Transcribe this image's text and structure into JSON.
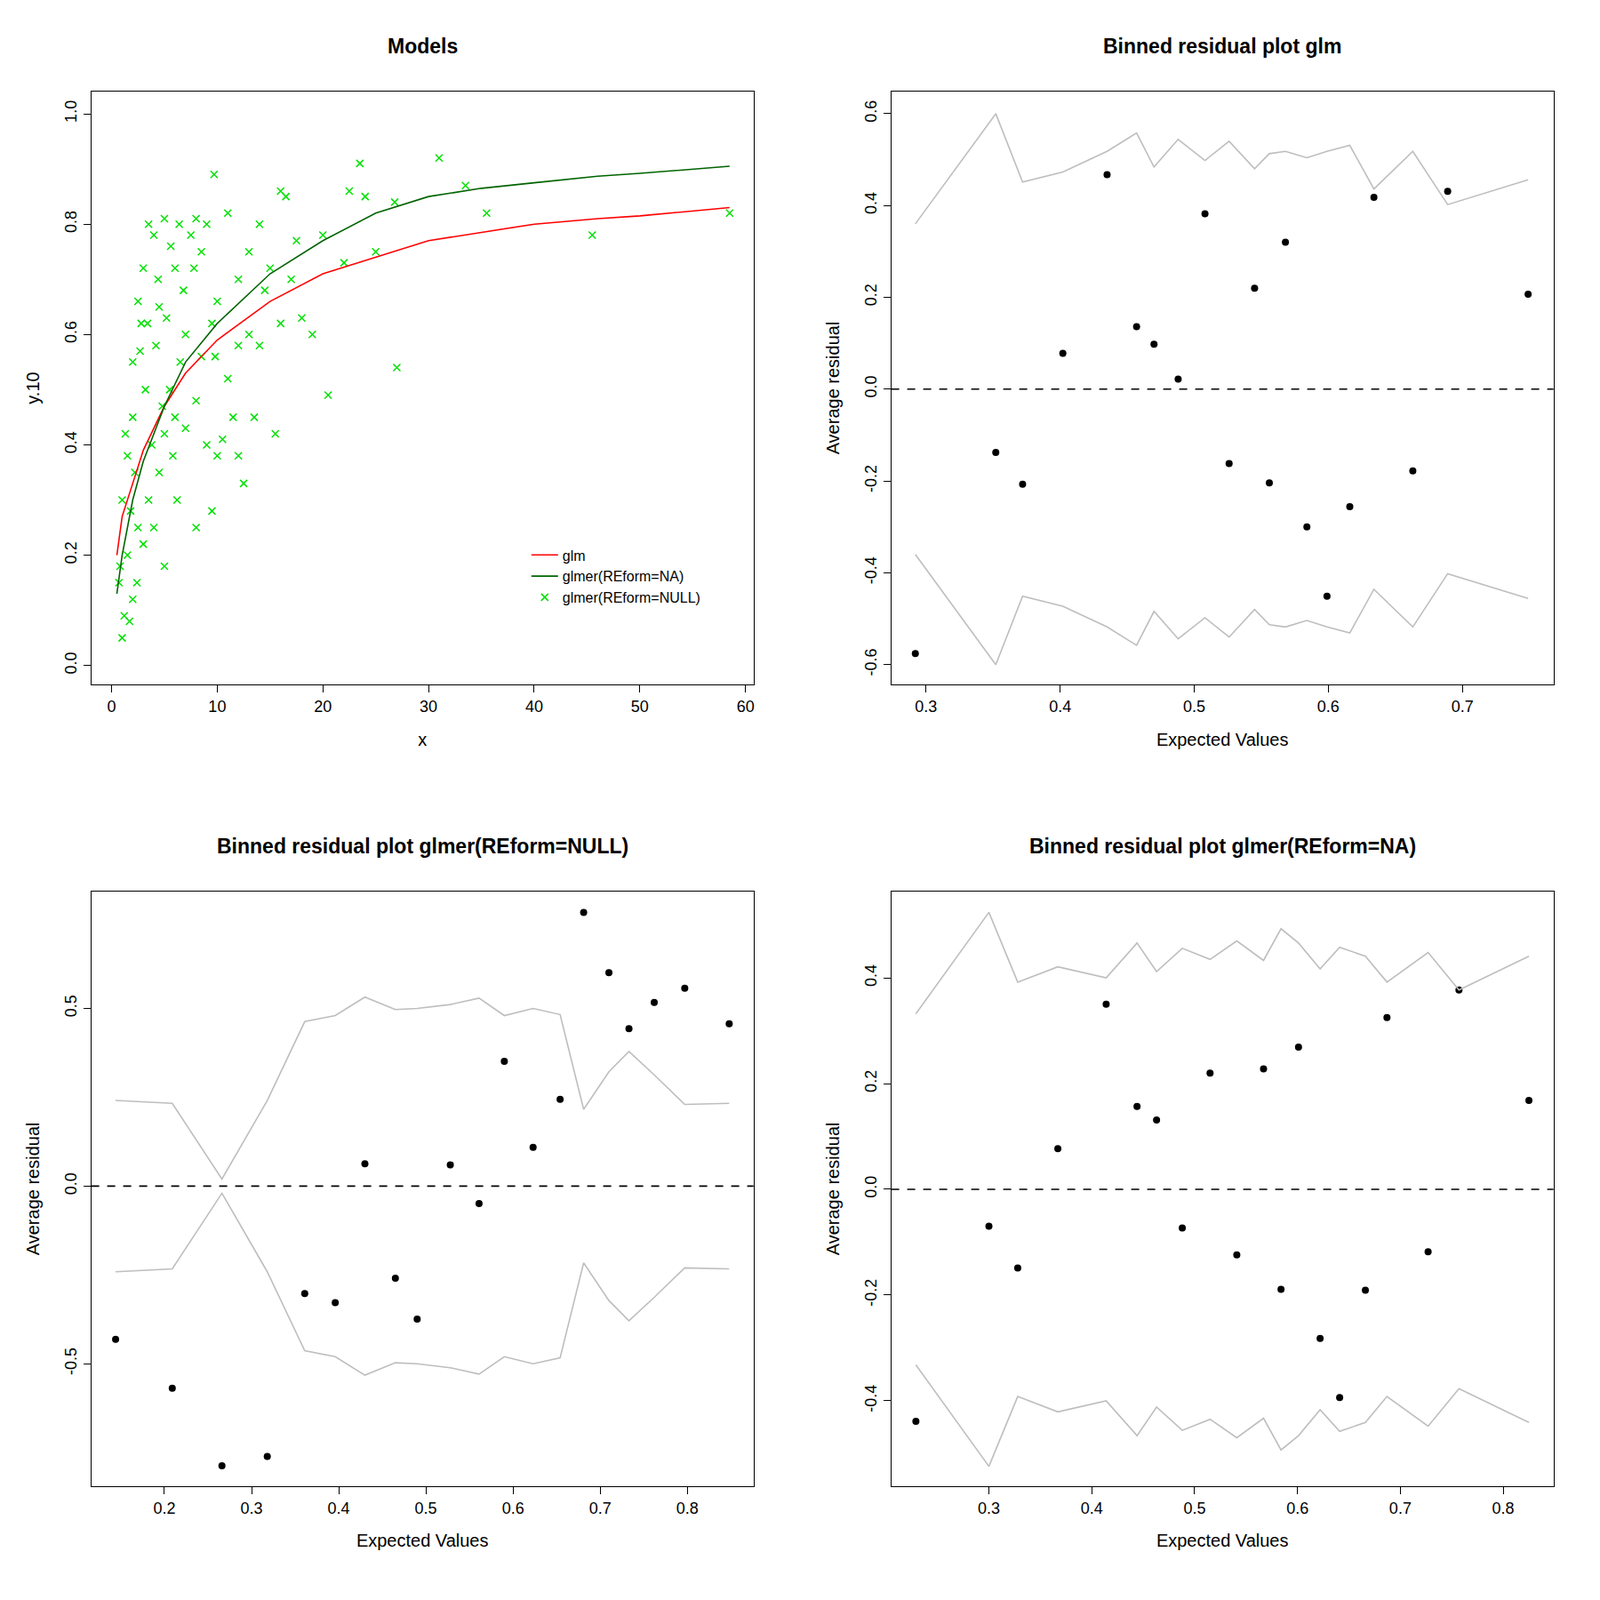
{
  "chart_data": [
    {
      "type": "scatter",
      "title": "Models",
      "x_label": "x",
      "y_label": "y.10",
      "xlim": [
        -1.93,
        60.77
      ],
      "ylim": [
        -0.035,
        1.041
      ],
      "xticks": [
        0,
        10,
        20,
        30,
        40,
        50,
        60
      ],
      "yticks": [
        {
          "value": 0,
          "label": "0.0"
        },
        0.2,
        0.4,
        0.6,
        0.8,
        {
          "value": 1,
          "label": "1.0"
        }
      ],
      "grid": false,
      "legend": "lower right",
      "series": [
        {
          "name": "glm",
          "type": "line",
          "color": "#ff0000",
          "x": [
            0.5,
            1,
            2,
            3,
            5,
            7,
            10,
            15,
            20,
            25,
            30,
            35,
            40,
            46,
            50,
            58.5
          ],
          "values": [
            0.2,
            0.27,
            0.33,
            0.39,
            0.47,
            0.53,
            0.59,
            0.66,
            0.71,
            0.74,
            0.77,
            0.785,
            0.8,
            0.81,
            0.815,
            0.83
          ]
        },
        {
          "name": "glmer(REform=NA)",
          "type": "line",
          "color": "#006400",
          "x": [
            0.5,
            1,
            2,
            3,
            5,
            7,
            10,
            15,
            20,
            25,
            30,
            35,
            40,
            46,
            50,
            58.5
          ],
          "values": [
            0.13,
            0.2,
            0.3,
            0.37,
            0.47,
            0.55,
            0.62,
            0.71,
            0.77,
            0.82,
            0.85,
            0.865,
            0.875,
            0.887,
            0.892,
            0.905
          ]
        },
        {
          "name": "glmer(REform=NULL)",
          "type": "scatter",
          "marker": "x",
          "color": "#00e000",
          "x": [
            9.7,
            31,
            23.5,
            33.5,
            35.5,
            45.5,
            58.5,
            27,
            20.5,
            26.8,
            22.5,
            24,
            25,
            16,
            15.5,
            13.5,
            12.5,
            12,
            10.5,
            9.5,
            8,
            5,
            1,
            1.2,
            1.7,
            2,
            0.7,
            1.5,
            2.5,
            3,
            3.5,
            4,
            4.5,
            5,
            5.5,
            6,
            6.5,
            7,
            7.5,
            8,
            8.5,
            9,
            10,
            11,
            12,
            13,
            14,
            14.5,
            15,
            16.5,
            17,
            18,
            19,
            22,
            2.5,
            2,
            3,
            3.5,
            4,
            4.5,
            5,
            6,
            2,
            1.5,
            1,
            2.8,
            3.2,
            4.2,
            5.2,
            5.8,
            6.2,
            7,
            8,
            8.5,
            9,
            9.5,
            10,
            11,
            12,
            13,
            3.8,
            4.8,
            2.2,
            1.8,
            0.8,
            2.4,
            3.4,
            6.8,
            7.8,
            4.4,
            5.6,
            6.4,
            1.3,
            2.7,
            9.8,
            11.5,
            14,
            16,
            17.5,
            20
          ],
          "values": [
            0.89,
            0.92,
            0.91,
            0.87,
            0.82,
            0.78,
            0.82,
            0.54,
            0.49,
            0.84,
            0.86,
            0.85,
            0.75,
            0.86,
            0.42,
            0.45,
            0.33,
            0.38,
            0.41,
            0.28,
            0.25,
            0.18,
            0.05,
            0.09,
            0.08,
            0.12,
            0.15,
            0.2,
            0.25,
            0.22,
            0.3,
            0.25,
            0.35,
            0.42,
            0.5,
            0.45,
            0.55,
            0.6,
            0.78,
            0.81,
            0.75,
            0.8,
            0.66,
            0.82,
            0.7,
            0.75,
            0.8,
            0.68,
            0.72,
            0.85,
            0.7,
            0.63,
            0.6,
            0.73,
            0.66,
            0.55,
            0.72,
            0.8,
            0.78,
            0.65,
            0.81,
            0.72,
            0.45,
            0.38,
            0.3,
            0.62,
            0.5,
            0.58,
            0.63,
            0.38,
            0.3,
            0.43,
            0.48,
            0.56,
            0.4,
            0.62,
            0.38,
            0.52,
            0.58,
            0.6,
            0.4,
            0.47,
            0.35,
            0.28,
            0.18,
            0.15,
            0.62,
            0.68,
            0.72,
            0.7,
            0.76,
            0.8,
            0.42,
            0.57,
            0.56,
            0.45,
            0.58,
            0.62,
            0.77,
            0.78
          ]
        }
      ]
    },
    {
      "type": "scatter",
      "title": "Binned residual plot glm",
      "x_label": "Expected Values",
      "y_label": "Average residual",
      "xlim": [
        0.274,
        0.768
      ],
      "ylim": [
        -0.644,
        0.649
      ],
      "xticks": [
        0.3,
        0.4,
        0.5,
        0.6,
        0.7
      ],
      "yticks": [
        -0.6,
        -0.4,
        -0.2,
        {
          "value": 0,
          "label": "0.0"
        },
        0.2,
        0.4,
        0.6
      ],
      "grid": false,
      "series": [
        {
          "type": "scatter",
          "marker": "circle",
          "color": "#000000",
          "x": [
            0.292,
            0.352,
            0.372,
            0.402,
            0.435,
            0.457,
            0.47,
            0.488,
            0.508,
            0.526,
            0.545,
            0.556,
            0.568,
            0.584,
            0.599,
            0.616,
            0.634,
            0.663,
            0.689,
            0.749
          ],
          "values": [
            -0.576,
            -0.138,
            -0.207,
            0.078,
            0.467,
            0.136,
            0.098,
            0.022,
            0.382,
            -0.162,
            0.22,
            -0.204,
            0.32,
            -0.3,
            -0.451,
            -0.256,
            0.418,
            -0.178,
            0.431,
            0.207
          ]
        },
        {
          "type": "line",
          "color": "#bebebe",
          "x": [
            0.292,
            0.352,
            0.372,
            0.402,
            0.435,
            0.457,
            0.47,
            0.488,
            0.508,
            0.526,
            0.545,
            0.556,
            0.568,
            0.584,
            0.599,
            0.616,
            0.634,
            0.663,
            0.689,
            0.749
          ],
          "values": [
            0.36,
            0.6,
            0.451,
            0.473,
            0.518,
            0.558,
            0.484,
            0.544,
            0.498,
            0.54,
            0.48,
            0.513,
            0.518,
            0.504,
            0.518,
            0.531,
            0.436,
            0.518,
            0.402,
            0.456
          ]
        },
        {
          "type": "line",
          "color": "#bebebe",
          "x": [
            0.292,
            0.352,
            0.372,
            0.402,
            0.435,
            0.457,
            0.47,
            0.488,
            0.508,
            0.526,
            0.545,
            0.556,
            0.568,
            0.584,
            0.599,
            0.616,
            0.634,
            0.663,
            0.689,
            0.749
          ],
          "values": [
            -0.36,
            -0.6,
            -0.451,
            -0.473,
            -0.518,
            -0.558,
            -0.484,
            -0.544,
            -0.498,
            -0.54,
            -0.48,
            -0.513,
            -0.518,
            -0.504,
            -0.518,
            -0.531,
            -0.436,
            -0.518,
            -0.402,
            -0.456
          ]
        },
        {
          "type": "line",
          "line_style": "dashed",
          "color": "#000000",
          "x": [
            0.274,
            0.768
          ],
          "values": [
            0,
            0
          ]
        }
      ]
    },
    {
      "type": "scatter",
      "title": "Binned residual plot glmer(REform=NULL)",
      "x_label": "Expected Values",
      "y_label": "Average residual",
      "xlim": [
        0.116,
        0.876
      ],
      "ylim": [
        -0.845,
        0.83
      ],
      "xticks": [
        0.2,
        0.3,
        0.4,
        0.5,
        0.6,
        0.7,
        0.8
      ],
      "yticks": [
        -0.5,
        {
          "value": 0,
          "label": "0.0"
        },
        0.5
      ],
      "grid": false,
      "series": [
        {
          "type": "scatter",
          "marker": "circle",
          "color": "#000000",
          "x": [
            0.144,
            0.209,
            0.266,
            0.318,
            0.361,
            0.396,
            0.43,
            0.465,
            0.49,
            0.528,
            0.561,
            0.59,
            0.623,
            0.654,
            0.681,
            0.71,
            0.733,
            0.762,
            0.797,
            0.848
          ],
          "values": [
            -0.431,
            -0.569,
            -0.787,
            -0.761,
            -0.302,
            -0.328,
            0.063,
            -0.259,
            -0.374,
            0.06,
            -0.049,
            0.351,
            0.109,
            0.244,
            0.77,
            0.601,
            0.443,
            0.517,
            0.557,
            0.457
          ]
        },
        {
          "type": "line",
          "color": "#bebebe",
          "x": [
            0.144,
            0.209,
            0.266,
            0.318,
            0.361,
            0.396,
            0.43,
            0.465,
            0.49,
            0.528,
            0.561,
            0.59,
            0.623,
            0.654,
            0.681,
            0.71,
            0.733,
            0.762,
            0.797,
            0.848
          ],
          "values": [
            0.241,
            0.233,
            0.02,
            0.241,
            0.463,
            0.48,
            0.532,
            0.497,
            0.5,
            0.511,
            0.529,
            0.48,
            0.5,
            0.483,
            0.216,
            0.322,
            0.379,
            0.313,
            0.23,
            0.233
          ]
        },
        {
          "type": "line",
          "color": "#bebebe",
          "x": [
            0.144,
            0.209,
            0.266,
            0.318,
            0.361,
            0.396,
            0.43,
            0.465,
            0.49,
            0.528,
            0.561,
            0.59,
            0.623,
            0.654,
            0.681,
            0.71,
            0.733,
            0.762,
            0.797,
            0.848
          ],
          "values": [
            -0.241,
            -0.233,
            -0.02,
            -0.241,
            -0.463,
            -0.48,
            -0.532,
            -0.497,
            -0.5,
            -0.511,
            -0.529,
            -0.48,
            -0.5,
            -0.483,
            -0.216,
            -0.322,
            -0.379,
            -0.313,
            -0.23,
            -0.233
          ]
        },
        {
          "type": "line",
          "line_style": "dashed",
          "color": "#000000",
          "x": [
            0.116,
            0.876
          ],
          "values": [
            0,
            0
          ]
        }
      ]
    },
    {
      "type": "scatter",
      "title": "Binned residual plot glmer(REform=NA)",
      "x_label": "Expected Values",
      "y_label": "Average residual",
      "xlim": [
        0.205,
        0.849
      ],
      "ylim": [
        -0.562,
        0.564
      ],
      "xticks": [
        0.3,
        0.4,
        0.5,
        0.6,
        0.7,
        0.8
      ],
      "yticks": [
        -0.4,
        -0.2,
        {
          "value": 0,
          "label": "0.0"
        },
        0.2,
        0.4
      ],
      "grid": false,
      "series": [
        {
          "type": "scatter",
          "marker": "circle",
          "color": "#000000",
          "x": [
            0.229,
            0.3,
            0.328,
            0.367,
            0.414,
            0.444,
            0.463,
            0.488,
            0.515,
            0.541,
            0.567,
            0.584,
            0.601,
            0.622,
            0.641,
            0.666,
            0.687,
            0.727,
            0.757,
            0.825
          ],
          "values": [
            -0.439,
            -0.07,
            -0.149,
            0.077,
            0.35,
            0.157,
            0.131,
            -0.073,
            0.22,
            -0.124,
            0.228,
            -0.189,
            0.269,
            -0.282,
            -0.394,
            -0.191,
            0.325,
            -0.118,
            0.377,
            0.168
          ]
        },
        {
          "type": "line",
          "color": "#bebebe",
          "x": [
            0.229,
            0.3,
            0.328,
            0.367,
            0.414,
            0.444,
            0.463,
            0.488,
            0.515,
            0.541,
            0.567,
            0.584,
            0.601,
            0.622,
            0.641,
            0.666,
            0.687,
            0.727,
            0.757,
            0.825
          ],
          "values": [
            0.332,
            0.524,
            0.392,
            0.421,
            0.4,
            0.466,
            0.412,
            0.456,
            0.435,
            0.47,
            0.433,
            0.493,
            0.466,
            0.417,
            0.458,
            0.441,
            0.392,
            0.448,
            0.377,
            0.441
          ]
        },
        {
          "type": "line",
          "color": "#bebebe",
          "x": [
            0.229,
            0.3,
            0.328,
            0.367,
            0.414,
            0.444,
            0.463,
            0.488,
            0.515,
            0.541,
            0.567,
            0.584,
            0.601,
            0.622,
            0.641,
            0.666,
            0.687,
            0.727,
            0.757,
            0.825
          ],
          "values": [
            -0.332,
            -0.524,
            -0.392,
            -0.421,
            -0.4,
            -0.466,
            -0.412,
            -0.456,
            -0.435,
            -0.47,
            -0.433,
            -0.493,
            -0.466,
            -0.417,
            -0.458,
            -0.441,
            -0.392,
            -0.448,
            -0.377,
            -0.441
          ]
        },
        {
          "type": "line",
          "line_style": "dashed",
          "color": "#000000",
          "x": [
            0.205,
            0.849
          ],
          "values": [
            0,
            0
          ]
        }
      ]
    }
  ]
}
